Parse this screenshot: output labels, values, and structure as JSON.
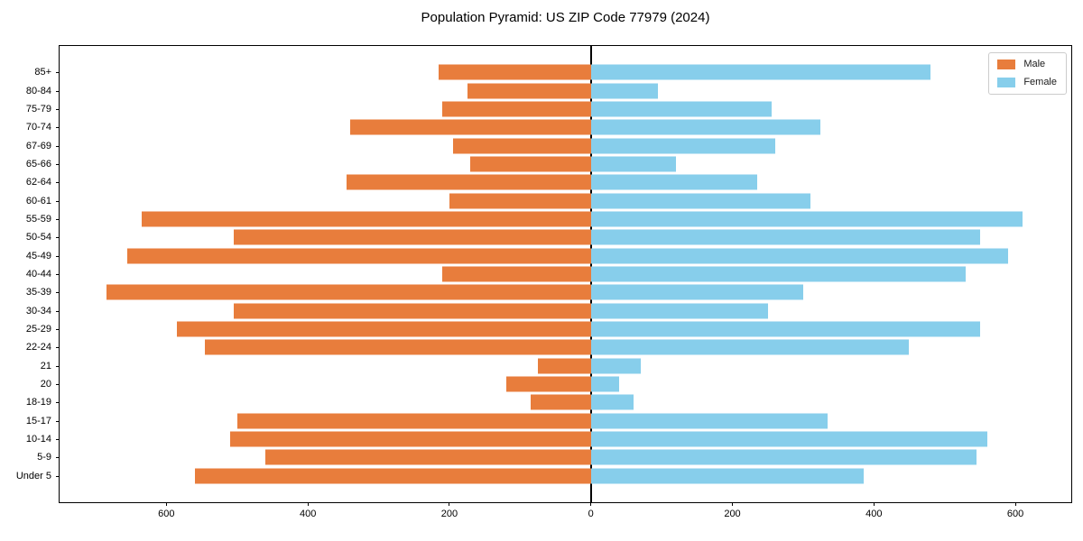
{
  "title": "Population Pyramid: US ZIP Code 77979 (2024)",
  "chart_data": {
    "type": "bar",
    "subtype": "population-pyramid-horizontal",
    "title": "Population Pyramid: US ZIP Code 77979 (2024)",
    "categories_top_to_bottom": [
      "85+",
      "80-84",
      "75-79",
      "70-74",
      "67-69",
      "65-66",
      "62-64",
      "60-61",
      "55-59",
      "50-54",
      "45-49",
      "40-44",
      "35-39",
      "30-34",
      "25-29",
      "22-24",
      "21",
      "20",
      "18-19",
      "15-17",
      "10-14",
      "5-9",
      "Under 5"
    ],
    "series": [
      {
        "name": "Male",
        "side": "left",
        "color": "#E87D3C",
        "values": [
          215,
          175,
          210,
          340,
          195,
          170,
          345,
          200,
          635,
          505,
          655,
          210,
          685,
          505,
          585,
          545,
          75,
          120,
          85,
          500,
          510,
          460,
          560
        ]
      },
      {
        "name": "Female",
        "side": "right",
        "color": "#87CEEB",
        "values": [
          480,
          95,
          255,
          325,
          260,
          120,
          235,
          310,
          610,
          550,
          590,
          530,
          300,
          250,
          550,
          450,
          70,
          40,
          60,
          335,
          560,
          545,
          385
        ]
      }
    ],
    "xlim": [
      -751,
      679
    ],
    "xticks": [
      -600,
      -400,
      -200,
      0,
      200,
      400,
      600
    ],
    "xtick_labels": [
      "600",
      "400",
      "200",
      "0",
      "200",
      "400",
      "600"
    ],
    "grid": false,
    "zero_line": true,
    "legend": {
      "position": "upper-right",
      "entries": [
        "Male",
        "Female"
      ]
    },
    "colors": {
      "male": "#E87D3C",
      "female": "#87CEEB",
      "axis": "#000000",
      "legend_border": "#cccccc"
    }
  },
  "legend": {
    "male_label": "Male",
    "female_label": "Female"
  }
}
